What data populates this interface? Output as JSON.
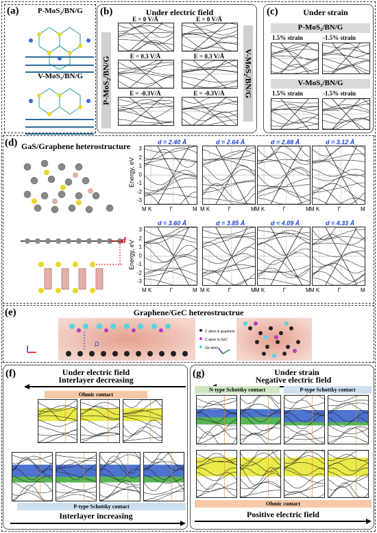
{
  "panel_a": {
    "label": "(a)",
    "top_title": "P-MoS₂/BN/G",
    "bottom_title": "V-MoS₂/BN/G"
  },
  "panel_b": {
    "label": "(b)",
    "title": "Under electric field",
    "left_side": "P-MoS₂/BN/G",
    "right_side": "V-MoS₂/BN/G",
    "plots": [
      {
        "title": "E = 0 V/Å"
      },
      {
        "title": "E = 0 V/Å"
      },
      {
        "title": "E = 0.3 V/Å"
      },
      {
        "title": "E = 0.3 V/Å"
      },
      {
        "title": "E = -0.3V/Å"
      },
      {
        "title": "E = -0.3V/Å"
      }
    ]
  },
  "panel_c": {
    "label": "(c)",
    "title": "Under strain",
    "top_band": "P-MoS₂/BN/G",
    "bottom_band": "V-MoS₂/BN/G",
    "strain_pos": "1.5% strain",
    "strain_neg": "-1.5% strain"
  },
  "panel_d": {
    "label": "(d)",
    "title": "GaS/Graphene heterostructure",
    "d_marker": "d",
    "ylabel": "Energy, eV",
    "yticks": [
      "3",
      "2",
      "1",
      "0",
      "-1",
      "-2",
      "-3"
    ],
    "xticks": [
      "M",
      "K",
      "Γ",
      "M"
    ],
    "distances": [
      "d = 2.40 Å",
      "d = 2.64 Å",
      "d = 2.88 Å",
      "d = 3.12 Å",
      "d = 3.60 Å",
      "d = 3.85 Å",
      "d = 4.09 Å",
      "d = 4.33 Å"
    ]
  },
  "panel_e": {
    "label": "(e)",
    "title": "Graphene/GeC heterostructrue",
    "legend": [
      "C atom in graphene",
      "C atom in GeC",
      "Ge atom"
    ],
    "d_marker": "D"
  },
  "panel_f": {
    "label": "(f)",
    "title": "Under electric field",
    "top_arrow": "Interlayer decreasing",
    "ohmic": "Ohmic contact",
    "ptype": "P-type Schottky contact",
    "bottom_arrow": "Interlayer increasing"
  },
  "panel_g": {
    "label": "(g)",
    "title": "Under strain",
    "subtitle": "Negative electric field",
    "ntype": "N-type Schottky contact",
    "ptype": "P-type Schottky contact",
    "ohmic": "Ohmic contact",
    "bottom_arrow": "Positive electric field"
  },
  "colors": {
    "accent_blue": "#1a3fd6",
    "yellow": "#e6e62a",
    "blue": "#2e5cc8",
    "green": "#3aa83a"
  }
}
